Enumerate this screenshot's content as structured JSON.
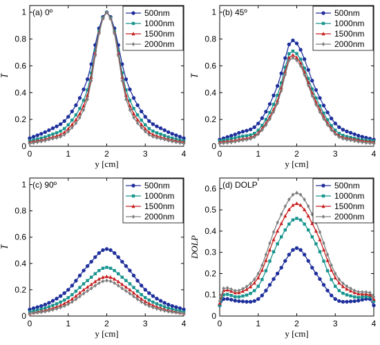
{
  "colors": {
    "500nm": "#1f2f9c",
    "1000nm": "#17948e",
    "1500nm": "#c81e1e",
    "2000nm": "#7d7d7d",
    "axis": "#000000"
  },
  "chart_data": [
    {
      "type": "line",
      "title": "(a) 0º",
      "xlabel": "y [cm]",
      "ylabel": "I̅",
      "xlim": [
        0,
        4
      ],
      "ylim": [
        0,
        1.05
      ],
      "xticks": [
        "0",
        "1",
        "2",
        "3",
        "4"
      ],
      "yticks": [
        "0",
        "0.2",
        "0.4",
        "0.6",
        "0.8",
        "1"
      ],
      "legend_position": "top-right",
      "series": [
        {
          "name": "500nm",
          "marker": "circle",
          "x": [
            0,
            0.5,
            1,
            1.5,
            1.8,
            2,
            2.2,
            2.5,
            3,
            3.5,
            4
          ],
          "y": [
            0.06,
            0.12,
            0.22,
            0.5,
            0.88,
            1.0,
            0.88,
            0.5,
            0.22,
            0.12,
            0.06
          ]
        },
        {
          "name": "1000nm",
          "marker": "square",
          "x": [
            0,
            0.5,
            1,
            1.5,
            1.8,
            2,
            2.2,
            2.5,
            3,
            3.5,
            4
          ],
          "y": [
            0.04,
            0.08,
            0.16,
            0.42,
            0.86,
            1.0,
            0.86,
            0.42,
            0.16,
            0.08,
            0.04
          ]
        },
        {
          "name": "1500nm",
          "marker": "triangle",
          "x": [
            0,
            0.5,
            1,
            1.5,
            1.8,
            2,
            2.2,
            2.5,
            3,
            3.5,
            4
          ],
          "y": [
            0.03,
            0.06,
            0.13,
            0.38,
            0.85,
            1.0,
            0.85,
            0.38,
            0.13,
            0.06,
            0.03
          ]
        },
        {
          "name": "2000nm",
          "marker": "diamond",
          "x": [
            0,
            0.5,
            1,
            1.5,
            1.8,
            2,
            2.2,
            2.5,
            3,
            3.5,
            4
          ],
          "y": [
            0.02,
            0.05,
            0.11,
            0.35,
            0.84,
            1.0,
            0.84,
            0.35,
            0.11,
            0.05,
            0.02
          ]
        }
      ]
    },
    {
      "type": "line",
      "title": "(b) 45º",
      "xlabel": "y [cm]",
      "ylabel": "I̅",
      "xlim": [
        0,
        4
      ],
      "ylim": [
        0,
        1.05
      ],
      "xticks": [
        "0",
        "1",
        "2",
        "3",
        "4"
      ],
      "yticks": [
        "0",
        "0.2",
        "0.4",
        "0.6",
        "0.8",
        "1"
      ],
      "legend_position": "top-right",
      "series": [
        {
          "name": "500nm",
          "marker": "circle",
          "x": [
            0,
            0.5,
            1,
            1.5,
            1.8,
            1.9,
            2.1,
            2.5,
            3,
            3.5,
            4
          ],
          "y": [
            0.05,
            0.1,
            0.17,
            0.45,
            0.76,
            0.79,
            0.72,
            0.42,
            0.17,
            0.09,
            0.05
          ]
        },
        {
          "name": "1000nm",
          "marker": "square",
          "x": [
            0,
            0.5,
            1,
            1.5,
            1.8,
            1.9,
            2.1,
            2.5,
            3,
            3.5,
            4
          ],
          "y": [
            0.04,
            0.07,
            0.12,
            0.38,
            0.69,
            0.71,
            0.65,
            0.36,
            0.12,
            0.06,
            0.04
          ]
        },
        {
          "name": "1500nm",
          "marker": "triangle",
          "x": [
            0,
            0.5,
            1,
            1.5,
            1.8,
            1.9,
            2.1,
            2.5,
            3,
            3.5,
            4
          ],
          "y": [
            0.03,
            0.05,
            0.1,
            0.34,
            0.66,
            0.68,
            0.62,
            0.33,
            0.1,
            0.05,
            0.03
          ]
        },
        {
          "name": "2000nm",
          "marker": "diamond",
          "x": [
            0,
            0.5,
            1,
            1.5,
            1.8,
            1.9,
            2.1,
            2.5,
            3,
            3.5,
            4
          ],
          "y": [
            0.02,
            0.04,
            0.09,
            0.32,
            0.64,
            0.66,
            0.6,
            0.31,
            0.09,
            0.04,
            0.02
          ]
        }
      ]
    },
    {
      "type": "line",
      "title": "(c) 90º",
      "xlabel": "y [cm]",
      "ylabel": "I̅",
      "xlim": [
        0,
        4
      ],
      "ylim": [
        0,
        1.05
      ],
      "xticks": [
        "0",
        "1",
        "2",
        "3",
        "4"
      ],
      "yticks": [
        "0",
        "0.2",
        "0.4",
        "0.6",
        "0.8",
        "1"
      ],
      "legend_position": "top-right",
      "series": [
        {
          "name": "500nm",
          "marker": "circle",
          "x": [
            0,
            0.5,
            1,
            1.5,
            2,
            2.5,
            3,
            3.5,
            4
          ],
          "y": [
            0.05,
            0.1,
            0.2,
            0.38,
            0.51,
            0.38,
            0.2,
            0.1,
            0.05
          ]
        },
        {
          "name": "1000nm",
          "marker": "square",
          "x": [
            0,
            0.5,
            1,
            1.5,
            2,
            2.5,
            3,
            3.5,
            4
          ],
          "y": [
            0.03,
            0.07,
            0.14,
            0.27,
            0.37,
            0.27,
            0.14,
            0.07,
            0.03
          ]
        },
        {
          "name": "1500nm",
          "marker": "triangle",
          "x": [
            0,
            0.5,
            1,
            1.5,
            2,
            2.5,
            3,
            3.5,
            4
          ],
          "y": [
            0.02,
            0.05,
            0.11,
            0.22,
            0.3,
            0.22,
            0.11,
            0.05,
            0.02
          ]
        },
        {
          "name": "2000nm",
          "marker": "diamond",
          "x": [
            0,
            0.5,
            1,
            1.5,
            2,
            2.5,
            3,
            3.5,
            4
          ],
          "y": [
            0.02,
            0.04,
            0.09,
            0.19,
            0.27,
            0.19,
            0.09,
            0.04,
            0.02
          ]
        }
      ]
    },
    {
      "type": "line",
      "title": "(d) DOLP",
      "xlabel": "y [cm]",
      "ylabel": "DOLP",
      "xlim": [
        0,
        4
      ],
      "ylim": [
        0,
        0.65
      ],
      "xticks": [
        "0",
        "1",
        "2",
        "3",
        "4"
      ],
      "yticks": [
        "0",
        "0.1",
        "0.2",
        "0.3",
        "0.4",
        "0.5",
        "0.6"
      ],
      "legend_position": "top-right",
      "series": [
        {
          "name": "500nm",
          "marker": "circle",
          "x": [
            0,
            0.1,
            0.5,
            1,
            1.5,
            2,
            2.5,
            3,
            3.5,
            3.9,
            4
          ],
          "y": [
            0.05,
            0.08,
            0.07,
            0.08,
            0.2,
            0.32,
            0.2,
            0.08,
            0.07,
            0.08,
            0.05
          ]
        },
        {
          "name": "1000nm",
          "marker": "square",
          "x": [
            0,
            0.1,
            0.5,
            1,
            1.5,
            2,
            2.5,
            3,
            3.5,
            3.9,
            4
          ],
          "y": [
            0.05,
            0.1,
            0.09,
            0.14,
            0.34,
            0.46,
            0.34,
            0.14,
            0.09,
            0.09,
            0.07
          ]
        },
        {
          "name": "1500nm",
          "marker": "triangle",
          "x": [
            0,
            0.1,
            0.5,
            1,
            1.5,
            2,
            2.5,
            3,
            3.5,
            3.9,
            4
          ],
          "y": [
            0.06,
            0.12,
            0.11,
            0.18,
            0.4,
            0.53,
            0.4,
            0.18,
            0.11,
            0.1,
            0.08
          ]
        },
        {
          "name": "2000nm",
          "marker": "diamond",
          "x": [
            0,
            0.1,
            0.5,
            1,
            1.5,
            2,
            2.5,
            3,
            3.5,
            3.9,
            4
          ],
          "y": [
            0.07,
            0.13,
            0.12,
            0.2,
            0.44,
            0.58,
            0.44,
            0.2,
            0.12,
            0.11,
            0.09
          ]
        }
      ]
    }
  ]
}
